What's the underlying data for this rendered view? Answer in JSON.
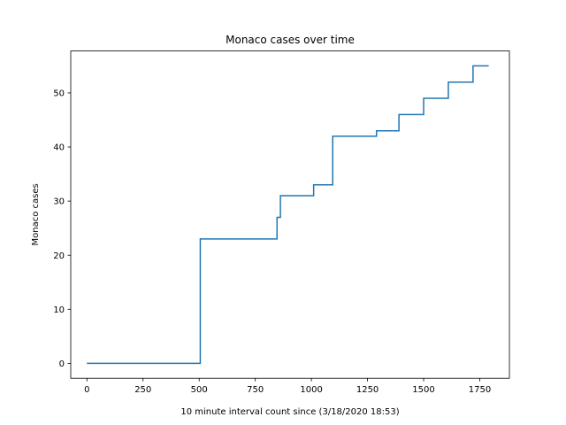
{
  "chart_data": {
    "type": "line",
    "title": "Monaco cases over time",
    "xlabel": "10 minute interval count since (3/18/2020 18:53)",
    "ylabel": "Monaco cases",
    "xlim": [
      -72,
      1882
    ],
    "ylim": [
      -2.75,
      57.75
    ],
    "xticks": [
      0,
      250,
      500,
      750,
      1000,
      1250,
      1500,
      1750
    ],
    "yticks": [
      0,
      10,
      20,
      30,
      40,
      50
    ],
    "grid": false,
    "line_color": "#1f77b4",
    "series": [
      {
        "step": "post",
        "x": [
          0,
          505,
          847,
          857,
          862,
          1010,
          1095,
          1290,
          1390,
          1500,
          1610,
          1720,
          1790
        ],
        "y": [
          0,
          23,
          27,
          27,
          31,
          33,
          42,
          43,
          46,
          49,
          52,
          55,
          55
        ]
      }
    ]
  }
}
